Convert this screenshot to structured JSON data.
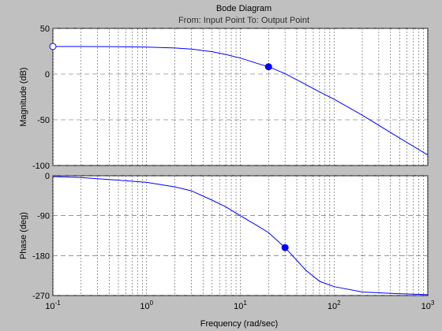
{
  "chart_data": {
    "type": "line",
    "title": "Bode Diagram",
    "subtitle": "From: Input Point  To: Output Point",
    "xlabel": "Frequency  (rad/sec)",
    "x_scale": "log",
    "xlim": [
      0.1,
      1000
    ],
    "x_ticks": [
      {
        "value": 0.1,
        "base": "10",
        "exp": "-1"
      },
      {
        "value": 1,
        "base": "10",
        "exp": "0"
      },
      {
        "value": 10,
        "base": "10",
        "exp": "1"
      },
      {
        "value": 100,
        "base": "10",
        "exp": "2"
      },
      {
        "value": 1000,
        "base": "10",
        "exp": "3"
      }
    ],
    "grid": true,
    "line_color": "#0000ff",
    "panels": [
      {
        "name": "magnitude",
        "ylabel": "Magnitude (dB)",
        "ylim": [
          -100,
          50
        ],
        "y_ticks": [
          {
            "value": 50,
            "label": "50"
          },
          {
            "value": 0,
            "label": "0"
          },
          {
            "value": -50,
            "label": "-50"
          },
          {
            "value": -100,
            "label": "-100"
          }
        ],
        "series": [
          {
            "x": [
              0.1,
              0.2,
              0.5,
              1,
              2,
              3,
              5,
              7,
              10,
              15,
              20,
              30,
              50,
              70,
              100,
              200,
              500,
              1000
            ],
            "y": [
              30.2,
              30.2,
              30.0,
              29.5,
              28.5,
              27.3,
              24.5,
              21.5,
              17.5,
              11.8,
              8.0,
              0.5,
              -11.5,
              -19.5,
              -27.5,
              -45.0,
              -70.0,
              -88.5
            ]
          }
        ],
        "markers": [
          {
            "x": 0.1,
            "y": 30.2,
            "style": "open"
          },
          {
            "x": 20,
            "y": 8.0,
            "style": "filled"
          }
        ]
      },
      {
        "name": "phase",
        "ylabel": "Phase (deg)",
        "ylim": [
          -270,
          0
        ],
        "y_ticks": [
          {
            "value": 0,
            "label": "0"
          },
          {
            "value": -90,
            "label": "-90"
          },
          {
            "value": -180,
            "label": "-180"
          },
          {
            "value": -270,
            "label": "-270"
          }
        ],
        "series": [
          {
            "x": [
              0.1,
              0.2,
              0.5,
              1,
              2,
              3,
              5,
              7,
              10,
              15,
              20,
              30,
              50,
              70,
              100,
              200,
              500,
              1000
            ],
            "y": [
              -2,
              -4,
              -10,
              -15,
              -25,
              -34,
              -55,
              -70,
              -90,
              -112,
              -128,
              -162,
              -213,
              -238,
              -250,
              -262,
              -266,
              -268
            ]
          }
        ],
        "markers": [
          {
            "x": 30,
            "y": -162,
            "style": "filled"
          }
        ]
      }
    ]
  }
}
